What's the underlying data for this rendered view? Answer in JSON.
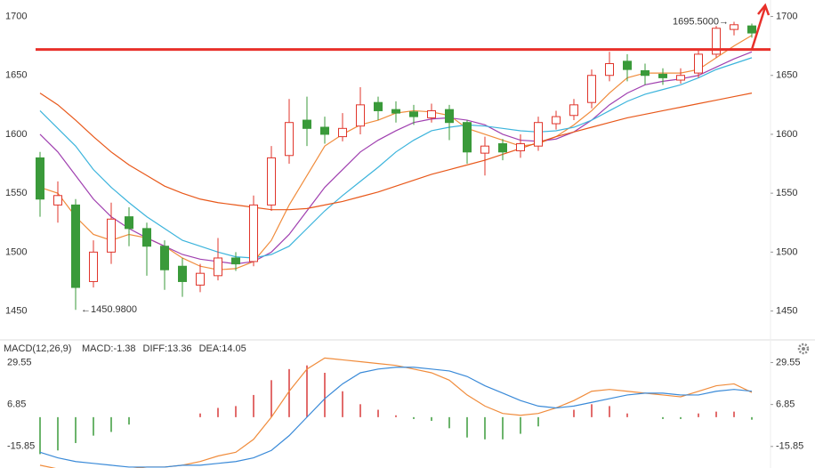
{
  "chart_data": [
    {
      "type": "candlestick",
      "open": [
        1580,
        1540,
        1540,
        1475,
        1500,
        1530,
        1520,
        1505,
        1488,
        1472,
        1480,
        1495,
        1492,
        1540,
        1582,
        1612,
        1606,
        1598,
        1607,
        1627,
        1621,
        1619,
        1614,
        1621,
        1610,
        1584,
        1592,
        1586,
        1590,
        1609,
        1616,
        1627,
        1650,
        1662,
        1654,
        1651,
        1646,
        1652,
        1668,
        1689,
        1692
      ],
      "high": [
        1585,
        1560,
        1545,
        1510,
        1542,
        1538,
        1525,
        1510,
        1495,
        1490,
        1512,
        1500,
        1548,
        1590,
        1630,
        1632,
        1615,
        1618,
        1640,
        1632,
        1628,
        1625,
        1626,
        1625,
        1612,
        1598,
        1596,
        1600,
        1615,
        1620,
        1630,
        1655,
        1670,
        1668,
        1660,
        1656,
        1656,
        1672,
        1692,
        1695.5,
        1694
      ],
      "low": [
        1530,
        1525,
        1450.98,
        1470,
        1490,
        1505,
        1480,
        1468,
        1462,
        1466,
        1476,
        1484,
        1488,
        1535,
        1575,
        1590,
        1592,
        1594,
        1600,
        1612,
        1610,
        1608,
        1610,
        1595,
        1575,
        1565,
        1578,
        1580,
        1586,
        1604,
        1612,
        1622,
        1645,
        1645,
        1642,
        1642,
        1643,
        1648,
        1665,
        1684,
        1682
      ],
      "close": [
        1545,
        1548,
        1470,
        1500,
        1528,
        1520,
        1505,
        1485,
        1475,
        1482,
        1495,
        1490,
        1540,
        1580,
        1610,
        1605,
        1600,
        1605,
        1625,
        1620,
        1618,
        1615,
        1620,
        1610,
        1585,
        1590,
        1585,
        1592,
        1610,
        1615,
        1625,
        1650,
        1660,
        1655,
        1650,
        1648,
        1650,
        1668,
        1690,
        1693,
        1686
      ],
      "up_color": "#e0352b",
      "down_color": "#3a9a3a",
      "series": [
        {
          "color": "#f08c3c",
          "values": [
            1555,
            1550,
            1530,
            1515,
            1510,
            1515,
            1512,
            1505,
            1495,
            1488,
            1485,
            1486,
            1492,
            1510,
            1540,
            1565,
            1590,
            1600,
            1608,
            1612,
            1618,
            1620,
            1619,
            1616,
            1605,
            1600,
            1595,
            1590,
            1592,
            1598,
            1608,
            1620,
            1635,
            1648,
            1652,
            1652,
            1652,
            1655,
            1665,
            1675,
            1684
          ]
        },
        {
          "color": "#a040b0",
          "values": [
            1600,
            1585,
            1565,
            1545,
            1530,
            1520,
            1512,
            1505,
            1498,
            1494,
            1492,
            1490,
            1492,
            1500,
            1515,
            1535,
            1555,
            1570,
            1585,
            1595,
            1603,
            1610,
            1613,
            1614,
            1612,
            1608,
            1600,
            1595,
            1594,
            1596,
            1602,
            1612,
            1625,
            1635,
            1642,
            1645,
            1647,
            1650,
            1657,
            1664,
            1670
          ]
        },
        {
          "color": "#3cb4dc",
          "values": [
            1620,
            1605,
            1590,
            1570,
            1555,
            1542,
            1530,
            1520,
            1510,
            1505,
            1500,
            1496,
            1495,
            1498,
            1505,
            1520,
            1535,
            1548,
            1560,
            1572,
            1585,
            1595,
            1603,
            1606,
            1608,
            1607,
            1605,
            1603,
            1602,
            1603,
            1606,
            1612,
            1620,
            1628,
            1634,
            1638,
            1642,
            1648,
            1655,
            1660,
            1665
          ]
        },
        {
          "color": "#e8581a",
          "values": [
            1635,
            1625,
            1612,
            1598,
            1585,
            1574,
            1565,
            1556,
            1550,
            1545,
            1542,
            1540,
            1538,
            1536,
            1536,
            1537,
            1540,
            1543,
            1547,
            1551,
            1556,
            1561,
            1566,
            1570,
            1574,
            1578,
            1583,
            1588,
            1593,
            1598,
            1602,
            1606,
            1610,
            1614,
            1617,
            1620,
            1623,
            1626,
            1629,
            1632,
            1635
          ]
        }
      ],
      "hline": {
        "value": 1672,
        "color": "#e8302a"
      },
      "annotations": [
        "1695.5000→",
        "←1450.9800"
      ],
      "ylim": [
        1427,
        1714
      ],
      "yticks": [
        1450,
        1500,
        1550,
        1600,
        1650,
        1700
      ]
    },
    {
      "type": "macd",
      "title": "MACD(12,26,9)",
      "series": [
        {
          "name": "MACD:-1.38",
          "color": "#3a9a3a",
          "up_color": "#d93b3b",
          "values": [
            -20,
            -18,
            -14,
            -10,
            -8,
            -4,
            0,
            0,
            0,
            2,
            5,
            6,
            12,
            20,
            26,
            28,
            24,
            14,
            7,
            4,
            1,
            -1,
            -2,
            -6,
            -11,
            -12,
            -12,
            -9,
            -5,
            0,
            4,
            7,
            6,
            2,
            0,
            -1,
            -1,
            2,
            3,
            3,
            -1.38
          ]
        },
        {
          "name": "DIFF:13.36",
          "color": "#f08c3c",
          "values": [
            -26,
            -28,
            -29,
            -29,
            -29,
            -28,
            -27,
            -27,
            -26,
            -24,
            -21,
            -19,
            -12,
            0,
            14,
            26,
            32,
            31,
            30,
            29,
            28,
            26,
            24,
            20,
            12,
            6,
            2,
            1,
            2,
            5,
            9,
            14,
            15,
            14,
            13,
            12,
            11,
            14,
            17,
            18,
            13.36
          ]
        },
        {
          "name": "DEA:14.05",
          "color": "#3a8ad8",
          "values": [
            -19,
            -22,
            -24,
            -25,
            -26,
            -27,
            -27,
            -27,
            -26,
            -26,
            -25,
            -24,
            -22,
            -18,
            -10,
            0,
            10,
            18,
            24,
            26,
            27,
            27,
            26,
            25,
            22,
            17,
            13,
            9,
            6,
            5,
            6,
            8,
            10,
            12,
            13,
            13,
            12,
            12,
            14,
            15,
            14.05
          ]
        }
      ],
      "ylim": [
        -27.5,
        34.1
      ],
      "yticks": [
        -15.85,
        6.85,
        29.55
      ]
    }
  ]
}
